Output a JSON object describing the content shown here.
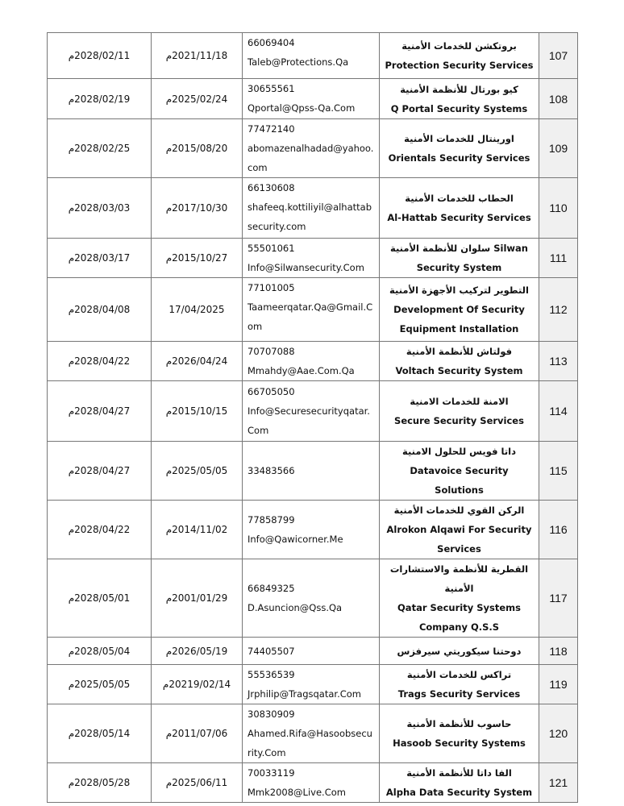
{
  "rows": [
    {
      "expiry": "2028/02/11م",
      "issued": "2021/11/18م",
      "phone": "66069404",
      "email": "Taleb@Protections.Qa",
      "name_ar": "بروتكشن للخدمات الأمنية",
      "name_en": "Protection Security Services",
      "no": "107"
    },
    {
      "expiry": "2028/02/19م",
      "issued": "2025/02/24م",
      "phone": "30655561",
      "email": "Qportal@Qpss-Qa.Com",
      "name_ar": "كيو بورتال للأنظمة الأمنية",
      "name_en": "Q Portal Security Systems",
      "no": "108"
    },
    {
      "expiry": "2028/02/25م",
      "issued": "2015/08/20م",
      "phone": "77472140",
      "email": "abomazenalhadad@yahoo.com",
      "name_ar": "اورينتال للخدمات الأمنية",
      "name_en": "Orientals Security Services",
      "no": "109"
    },
    {
      "expiry": "2028/03/03م",
      "issued": "2017/10/30م",
      "phone": "66130608",
      "email": "shafeeq.kottiliyil@alhattabsecurity.com",
      "name_ar": "الحطاب للخدمات الأمنية",
      "name_en": "Al-Hattab Security Services",
      "no": "110"
    },
    {
      "expiry": "2028/03/17م",
      "issued": "2015/10/27م",
      "phone": "55501061",
      "email": "Info@Silwansecurity.Com",
      "name_ar": "Silwan سلوان للأنظمة الأمنية",
      "name_en": "Security System",
      "no": "111"
    },
    {
      "expiry": "2028/04/08م",
      "issued": "17/04/2025",
      "phone": "77101005",
      "email": "Taameerqatar.Qa@Gmail.Com",
      "name_ar": "التطوير لتركيب الأجهزة الأمنية",
      "name_en": "Development Of Security Equipment Installation",
      "no": "112"
    },
    {
      "expiry": "2028/04/22م",
      "issued": "2026/04/24م",
      "phone": "70707088",
      "email": "Mmahdy@Aae.Com.Qa",
      "name_ar": "فولتاش للأنظمة الأمنية",
      "name_en": "Voltach Security System",
      "no": "113"
    },
    {
      "expiry": "2028/04/27م",
      "issued": "2015/10/15م",
      "phone": "66705050",
      "email": "Info@Securesecurityqatar.Com",
      "name_ar": "الامنة للخدمات الامنية",
      "name_en": "Secure Security Services",
      "no": "114"
    },
    {
      "expiry": "2028/04/27م",
      "issued": "2025/05/05م",
      "phone": "33483566",
      "email": "",
      "name_ar": "داتا فويس للحلول الامنية",
      "name_en": "Datavoice Security Solutions",
      "no": "115"
    },
    {
      "expiry": "2028/04/22م",
      "issued": "2014/11/02م",
      "phone": "77858799",
      "email": "Info@Qawicorner.Me",
      "name_ar": "الركن القوي للخدمات الأمنية",
      "name_en": "Alrokon Alqawi For Security Services",
      "no": "116"
    },
    {
      "expiry": "2028/05/01م",
      "issued": "2001/01/29م",
      "phone": "66849325",
      "email": "D.Asuncion@Qss.Qa",
      "name_ar": "القطرية للأنظمة والاستشارات الأمنية",
      "name_en": "Qatar Security Systems Company Q.S.S",
      "no": "117"
    },
    {
      "expiry": "2028/05/04م",
      "issued": "2026/05/19م",
      "phone": "74405507",
      "email": "",
      "name_ar": "دوحتنا سيكوريتي سيرفزس",
      "name_en": "",
      "no": "118"
    },
    {
      "expiry": "2025/05/05م",
      "issued": "20219/02/14م",
      "phone": "55536539",
      "email": "Jrphilip@Tragsqatar.Com",
      "name_ar": "تراكس للخدمات الأمنية",
      "name_en": "Trags Security Services",
      "no": "119"
    },
    {
      "expiry": "2028/05/14م",
      "issued": "2011/07/06م",
      "phone": "30830909",
      "email": "Ahamed.Rifa@Hasoobsecurity.Com",
      "name_ar": "حاسوب للأنظمة الأمنية",
      "name_en": "Hasoob Security Systems",
      "no": "120"
    },
    {
      "expiry": "2028/05/28م",
      "issued": "2025/06/11م",
      "phone": "70033119",
      "email": "Mmk2008@Live.Com",
      "name_ar": "الفا داتا للأنظمة الأمنية",
      "name_en": "Alpha Data Security System",
      "no": "121"
    }
  ]
}
